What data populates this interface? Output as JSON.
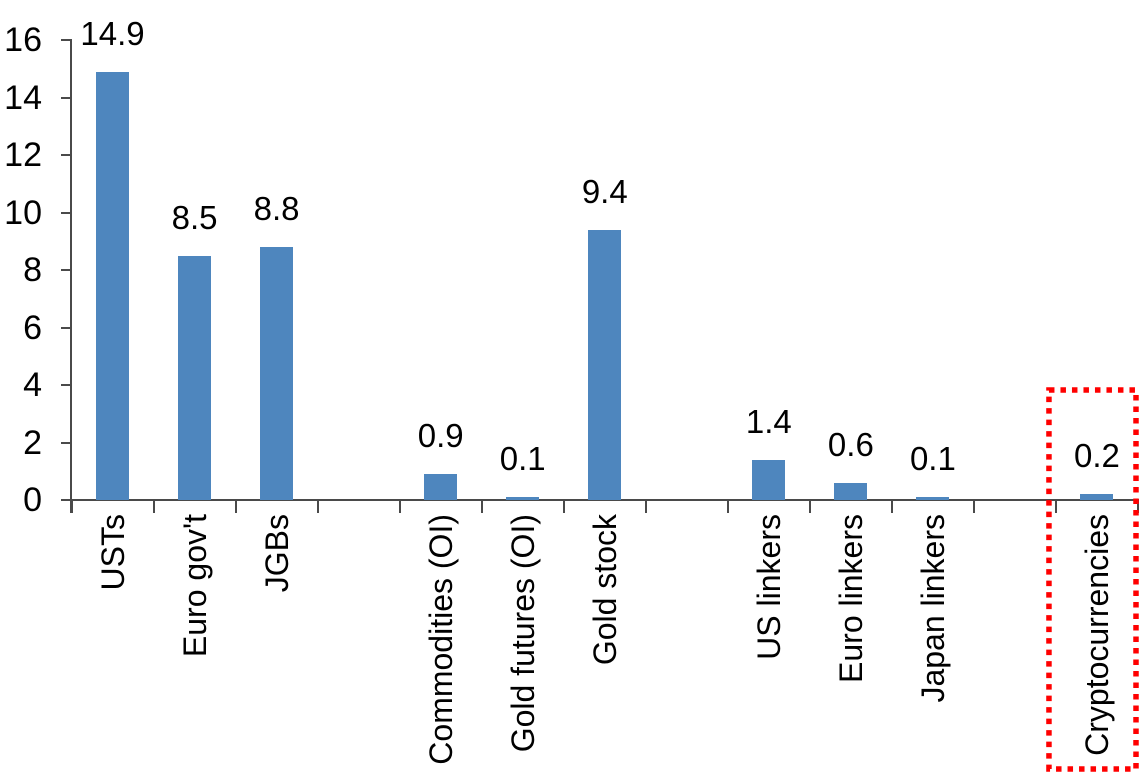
{
  "chart_data": {
    "type": "bar",
    "title": "",
    "xlabel": "",
    "ylabel": "",
    "categories": [
      "USTs",
      "Euro gov't",
      "JGBs",
      "Commodities (OI)",
      "Gold futures (OI)",
      "Gold stock",
      "US linkers",
      "Euro linkers",
      "Japan linkers",
      "Cryptocurrencies"
    ],
    "values": [
      14.9,
      8.5,
      8.8,
      0.9,
      0.1,
      9.4,
      1.4,
      0.6,
      0.1,
      0.2
    ],
    "value_labels": [
      "14.9",
      "8.5",
      "8.8",
      "0.9",
      "0.1",
      "9.4",
      "1.4",
      "0.6",
      "0.1",
      "0.2"
    ],
    "slot_of_category": [
      0,
      1,
      2,
      4,
      5,
      6,
      8,
      9,
      10,
      12
    ],
    "total_slots": 13,
    "groups": [
      [
        "USTs",
        "Euro gov't",
        "JGBs"
      ],
      [
        "Commodities (OI)",
        "Gold futures (OI)",
        "Gold stock"
      ],
      [
        "US linkers",
        "Euro linkers",
        "Japan linkers"
      ],
      [
        "Cryptocurrencies"
      ]
    ],
    "ylim": [
      0,
      16
    ],
    "ytick_step": 2,
    "ytick_labels": [
      "0",
      "2",
      "4",
      "6",
      "8",
      "10",
      "12",
      "14",
      "16"
    ],
    "grid": false,
    "legend": false,
    "bar_color": "#4E86BE",
    "axis_color": "#4A4A4A",
    "text_color": "#000000",
    "highlight": {
      "category": "Cryptocurrencies",
      "style": "dotted-box",
      "color": "#FF0000"
    }
  }
}
